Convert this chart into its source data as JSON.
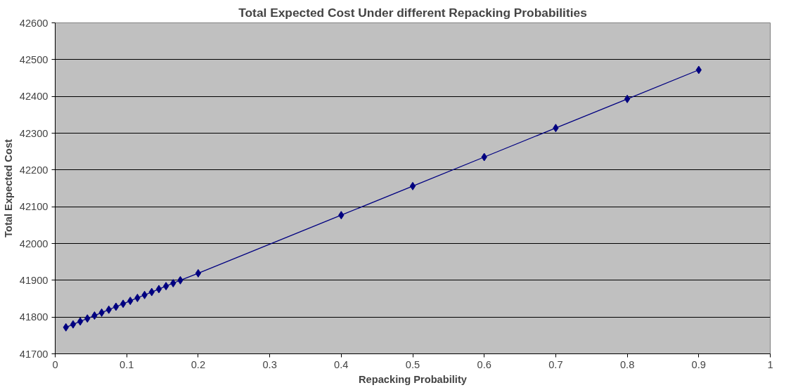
{
  "chart_data": {
    "type": "line",
    "title": "Total Expected Cost Under different Repacking Probabilities",
    "xlabel": "Repacking Probability",
    "ylabel": "Total Expected Cost",
    "x": [
      0.015,
      0.025,
      0.035,
      0.045,
      0.055,
      0.065,
      0.075,
      0.085,
      0.095,
      0.105,
      0.115,
      0.125,
      0.135,
      0.145,
      0.155,
      0.165,
      0.175,
      0.2,
      0.4,
      0.5,
      0.6,
      0.7,
      0.8,
      0.9
    ],
    "series": [
      {
        "color": "#000080",
        "values": [
          41772,
          41780,
          41788,
          41796,
          41804,
          41812,
          41820,
          41828,
          41836,
          41844,
          41852,
          41860,
          41868,
          41876,
          41884,
          41892,
          41900,
          41919,
          42077,
          42156,
          42235,
          42314,
          42393,
          42472
        ]
      }
    ],
    "xlim": [
      0,
      1
    ],
    "xticks": [
      0,
      0.1,
      0.2,
      0.3,
      0.4,
      0.5,
      0.6,
      0.7,
      0.8,
      0.9,
      1
    ],
    "ylim": [
      41700,
      42600
    ],
    "yticks": [
      41700,
      41800,
      41900,
      42000,
      42100,
      42200,
      42300,
      42400,
      42500,
      42600
    ],
    "grid": "y",
    "marker": "diamond",
    "line_style": "solid"
  }
}
